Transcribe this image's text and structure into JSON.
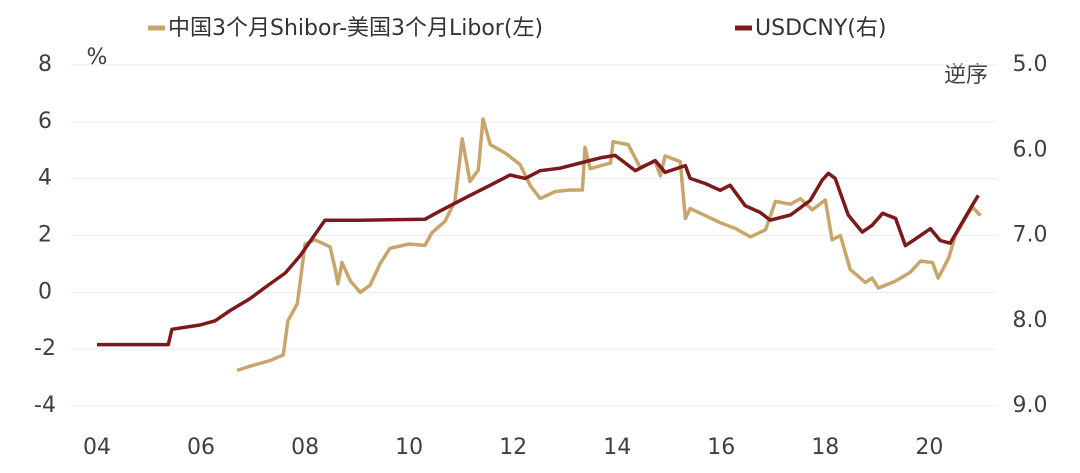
{
  "chart_data": {
    "type": "line",
    "left_unit": "%",
    "right_note": "逆序",
    "xlim": [
      2003.5,
      2021.3
    ],
    "xticks": [
      {
        "value": 2004,
        "label": "04"
      },
      {
        "value": 2006,
        "label": "06"
      },
      {
        "value": 2008,
        "label": "08"
      },
      {
        "value": 2010,
        "label": "10"
      },
      {
        "value": 2012,
        "label": "12"
      },
      {
        "value": 2014,
        "label": "14"
      },
      {
        "value": 2016,
        "label": "16"
      },
      {
        "value": 2018,
        "label": "18"
      },
      {
        "value": 2020,
        "label": "20"
      }
    ],
    "ylim": [
      -4,
      8
    ],
    "yticks": [
      -4,
      -2,
      0,
      2,
      4,
      6,
      8
    ],
    "y2lim": [
      9,
      5
    ],
    "y2_inverted": true,
    "y2ticks": [
      {
        "value": 5,
        "label": "5.0"
      },
      {
        "value": 6,
        "label": "6.0"
      },
      {
        "value": 7,
        "label": "7.0"
      },
      {
        "value": 8,
        "label": "8.0"
      },
      {
        "value": 9,
        "label": "9.0"
      }
    ],
    "grid": true,
    "series": [
      {
        "name": "中国3个月Shibor-美国3个月Libor(左)",
        "color": "#c8a66b",
        "x": [
          2006.69,
          2006.94,
          2007.33,
          2007.58,
          2007.67,
          2007.85,
          2008.0,
          2008.19,
          2008.48,
          2008.58,
          2008.63,
          2008.71,
          2008.87,
          2009.06,
          2009.25,
          2009.44,
          2009.63,
          2010.0,
          2010.3,
          2010.44,
          2010.69,
          2010.88,
          2011.02,
          2011.17,
          2011.33,
          2011.42,
          2011.56,
          2011.85,
          2012.13,
          2012.33,
          2012.52,
          2012.81,
          2013.1,
          2013.33,
          2013.38,
          2013.48,
          2013.87,
          2013.92,
          2014.21,
          2014.44,
          2014.73,
          2014.83,
          2014.92,
          2015.21,
          2015.31,
          2015.4,
          2015.69,
          2015.98,
          2016.27,
          2016.56,
          2016.85,
          2017.04,
          2017.33,
          2017.52,
          2017.75,
          2018.0,
          2018.13,
          2018.29,
          2018.48,
          2018.77,
          2018.9,
          2019.02,
          2019.35,
          2019.63,
          2019.83,
          2020.06,
          2020.17,
          2020.37,
          2020.5,
          2020.69,
          2020.83,
          2020.98
        ],
        "values": [
          -2.75,
          -2.6,
          -2.4,
          -2.2,
          -1.0,
          -0.4,
          1.7,
          1.85,
          1.6,
          0.8,
          0.3,
          1.05,
          0.4,
          0,
          0.25,
          1.0,
          1.55,
          1.7,
          1.65,
          2.1,
          2.5,
          3.2,
          5.4,
          3.9,
          4.3,
          6.1,
          5.2,
          4.9,
          4.5,
          3.75,
          3.3,
          3.55,
          3.6,
          3.6,
          5.1,
          4.35,
          4.55,
          5.3,
          5.2,
          4.4,
          4.6,
          4.1,
          4.8,
          4.6,
          2.6,
          2.95,
          2.7,
          2.45,
          2.25,
          1.95,
          2.2,
          3.2,
          3.1,
          3.3,
          2.9,
          3.25,
          1.85,
          2.0,
          0.8,
          0.35,
          0.5,
          0.15,
          0.4,
          0.7,
          1.1,
          1.05,
          0.5,
          1.2,
          2.0,
          2.6,
          3.0,
          2.7
        ]
      },
      {
        "name": "USDCNY(右)",
        "color": "#7b1a1c",
        "axis": "y2",
        "x": [
          2004,
          2005.37,
          2005.44,
          2005.98,
          2006.27,
          2006.56,
          2006.94,
          2007.23,
          2007.62,
          2007.9,
          2008.13,
          2008.38,
          2009.06,
          2010.3,
          2010.6,
          2011.17,
          2011.56,
          2011.94,
          2012.23,
          2012.52,
          2012.9,
          2013.29,
          2013.67,
          2013.96,
          2014.35,
          2014.73,
          2014.92,
          2015.31,
          2015.4,
          2015.69,
          2015.98,
          2016.17,
          2016.46,
          2016.75,
          2016.94,
          2017.33,
          2017.71,
          2017.94,
          2018.06,
          2018.19,
          2018.44,
          2018.71,
          2018.9,
          2019.1,
          2019.35,
          2019.54,
          2019.83,
          2020.02,
          2020.21,
          2020.4,
          2020.6,
          2020.79,
          2020.94
        ],
        "values": [
          8.28,
          8.28,
          8.1,
          8.05,
          8.0,
          7.88,
          7.74,
          7.61,
          7.44,
          7.24,
          7.04,
          6.82,
          6.82,
          6.81,
          6.71,
          6.53,
          6.41,
          6.29,
          6.33,
          6.24,
          6.21,
          6.15,
          6.09,
          6.06,
          6.24,
          6.12,
          6.26,
          6.18,
          6.33,
          6.39,
          6.47,
          6.41,
          6.65,
          6.73,
          6.82,
          6.76,
          6.59,
          6.35,
          6.27,
          6.33,
          6.76,
          6.96,
          6.88,
          6.74,
          6.8,
          7.12,
          7.0,
          6.92,
          7.06,
          7.09,
          6.88,
          6.68,
          6.53
        ]
      }
    ]
  }
}
